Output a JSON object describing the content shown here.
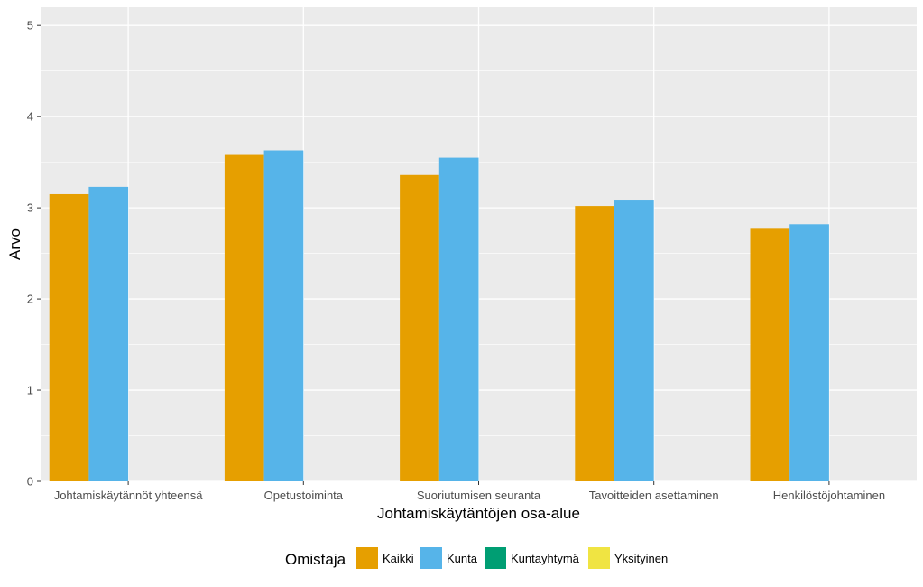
{
  "chart_data": {
    "type": "bar",
    "xlabel": "Johtamiskäytäntöjen osa-alue",
    "ylabel": "Arvo",
    "ylim": [
      0,
      5.2
    ],
    "yticks": [
      0,
      1,
      2,
      3,
      4,
      5
    ],
    "grid": true,
    "legend_position": "bottom",
    "legend_title": "Omistaja",
    "categories": [
      "Johtamiskäytännöt yhteensä",
      "Opetustoiminta",
      "Suoriutumisen seuranta",
      "Tavoitteiden asettaminen",
      "Henkilöstöjohtaminen"
    ],
    "series": [
      {
        "name": "Kaikki",
        "color": "#E69F00",
        "values": [
          3.15,
          3.58,
          3.36,
          3.02,
          2.77
        ]
      },
      {
        "name": "Kunta",
        "color": "#56B4E9",
        "values": [
          3.23,
          3.63,
          3.55,
          3.08,
          2.82
        ]
      },
      {
        "name": "Kuntayhtymä",
        "color": "#009E73",
        "values": [
          null,
          null,
          null,
          null,
          null
        ]
      },
      {
        "name": "Yksityinen",
        "color": "#F0E442",
        "values": [
          null,
          null,
          null,
          null,
          null
        ]
      }
    ]
  }
}
